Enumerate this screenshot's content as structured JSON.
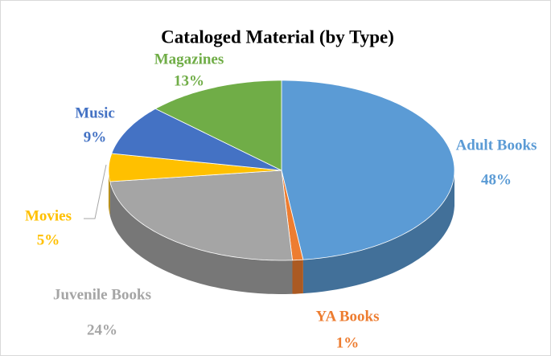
{
  "chart_data": {
    "type": "pie",
    "title": "Cataloged Material (by Type)",
    "categories": [
      "Adult Books",
      "YA Books",
      "Juvenile Books",
      "Movies",
      "Music",
      "Magazines"
    ],
    "values": [
      48,
      1,
      24,
      5,
      9,
      13
    ],
    "value_labels": [
      "48%",
      "1%",
      "24%",
      "5%",
      "9%",
      "13%"
    ],
    "colors": [
      "#5b9bd5",
      "#ed7d31",
      "#a5a5a5",
      "#ffc000",
      "#4472c4",
      "#70ad47"
    ]
  }
}
